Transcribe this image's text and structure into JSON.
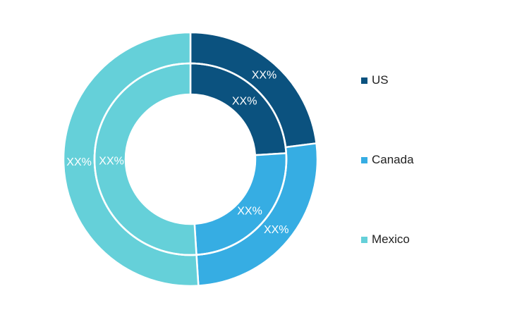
{
  "chart_data": {
    "type": "pie",
    "variant": "double-donut",
    "categories": [
      "US",
      "Canada",
      "Mexico"
    ],
    "colors": [
      "#0b527f",
      "#36ade3",
      "#65d0d9"
    ],
    "rings": [
      {
        "ring": "inner",
        "values": [
          24,
          25,
          51
        ],
        "labels": [
          "XX%",
          "XX%",
          "XX%"
        ]
      },
      {
        "ring": "outer",
        "values": [
          23,
          26,
          51
        ],
        "labels": [
          "XX%",
          "XX%",
          "XX%"
        ]
      }
    ],
    "legend": {
      "position": "right",
      "items": [
        {
          "label": "US",
          "color": "#0b527f"
        },
        {
          "label": "Canada",
          "color": "#36ade3"
        },
        {
          "label": "Mexico",
          "color": "#65d0d9"
        }
      ]
    }
  }
}
